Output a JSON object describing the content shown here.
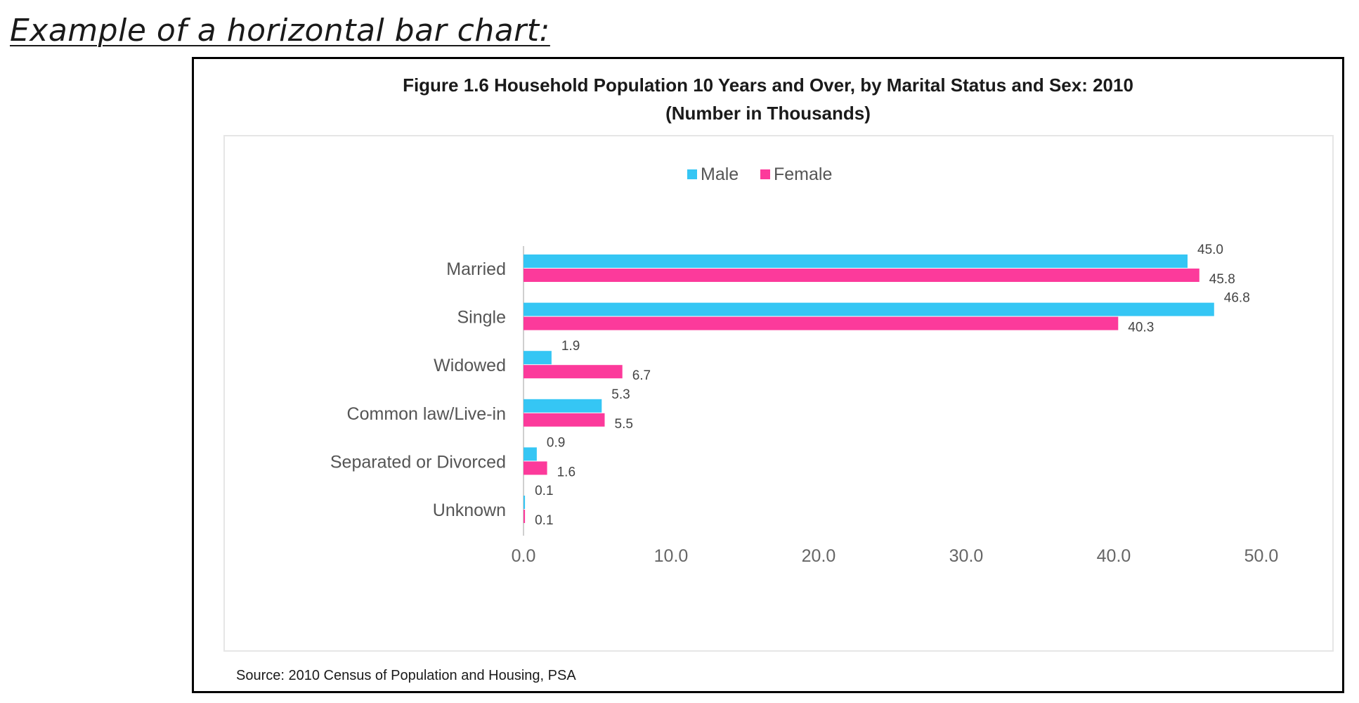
{
  "page": {
    "heading": "Example of a horizontal bar chart:"
  },
  "colors": {
    "male": "#35c6f4",
    "female": "#fc3a9b",
    "axis": "#cfcfcf"
  },
  "chart_data": {
    "type": "bar",
    "orientation": "horizontal",
    "title": "Figure 1.6 Household Population 10 Years and Over, by Marital Status and Sex:  2010",
    "subtitle": "(Number in Thousands)",
    "source": "Source:  2010 Census of Population and Housing, PSA",
    "categories": [
      "Married",
      "Single",
      "Widowed",
      "Common law/Live-in",
      "Separated or Divorced",
      "Unknown"
    ],
    "series": [
      {
        "name": "Male",
        "values": [
          45.0,
          46.8,
          1.9,
          5.3,
          0.9,
          0.1
        ]
      },
      {
        "name": "Female",
        "values": [
          45.8,
          40.3,
          6.7,
          5.5,
          1.6,
          0.1
        ]
      }
    ],
    "xlim": [
      0,
      50
    ],
    "xticks": [
      "0.0",
      "10.0",
      "20.0",
      "30.0",
      "40.0",
      "50.0"
    ],
    "grid": false,
    "legend": "top-center"
  }
}
